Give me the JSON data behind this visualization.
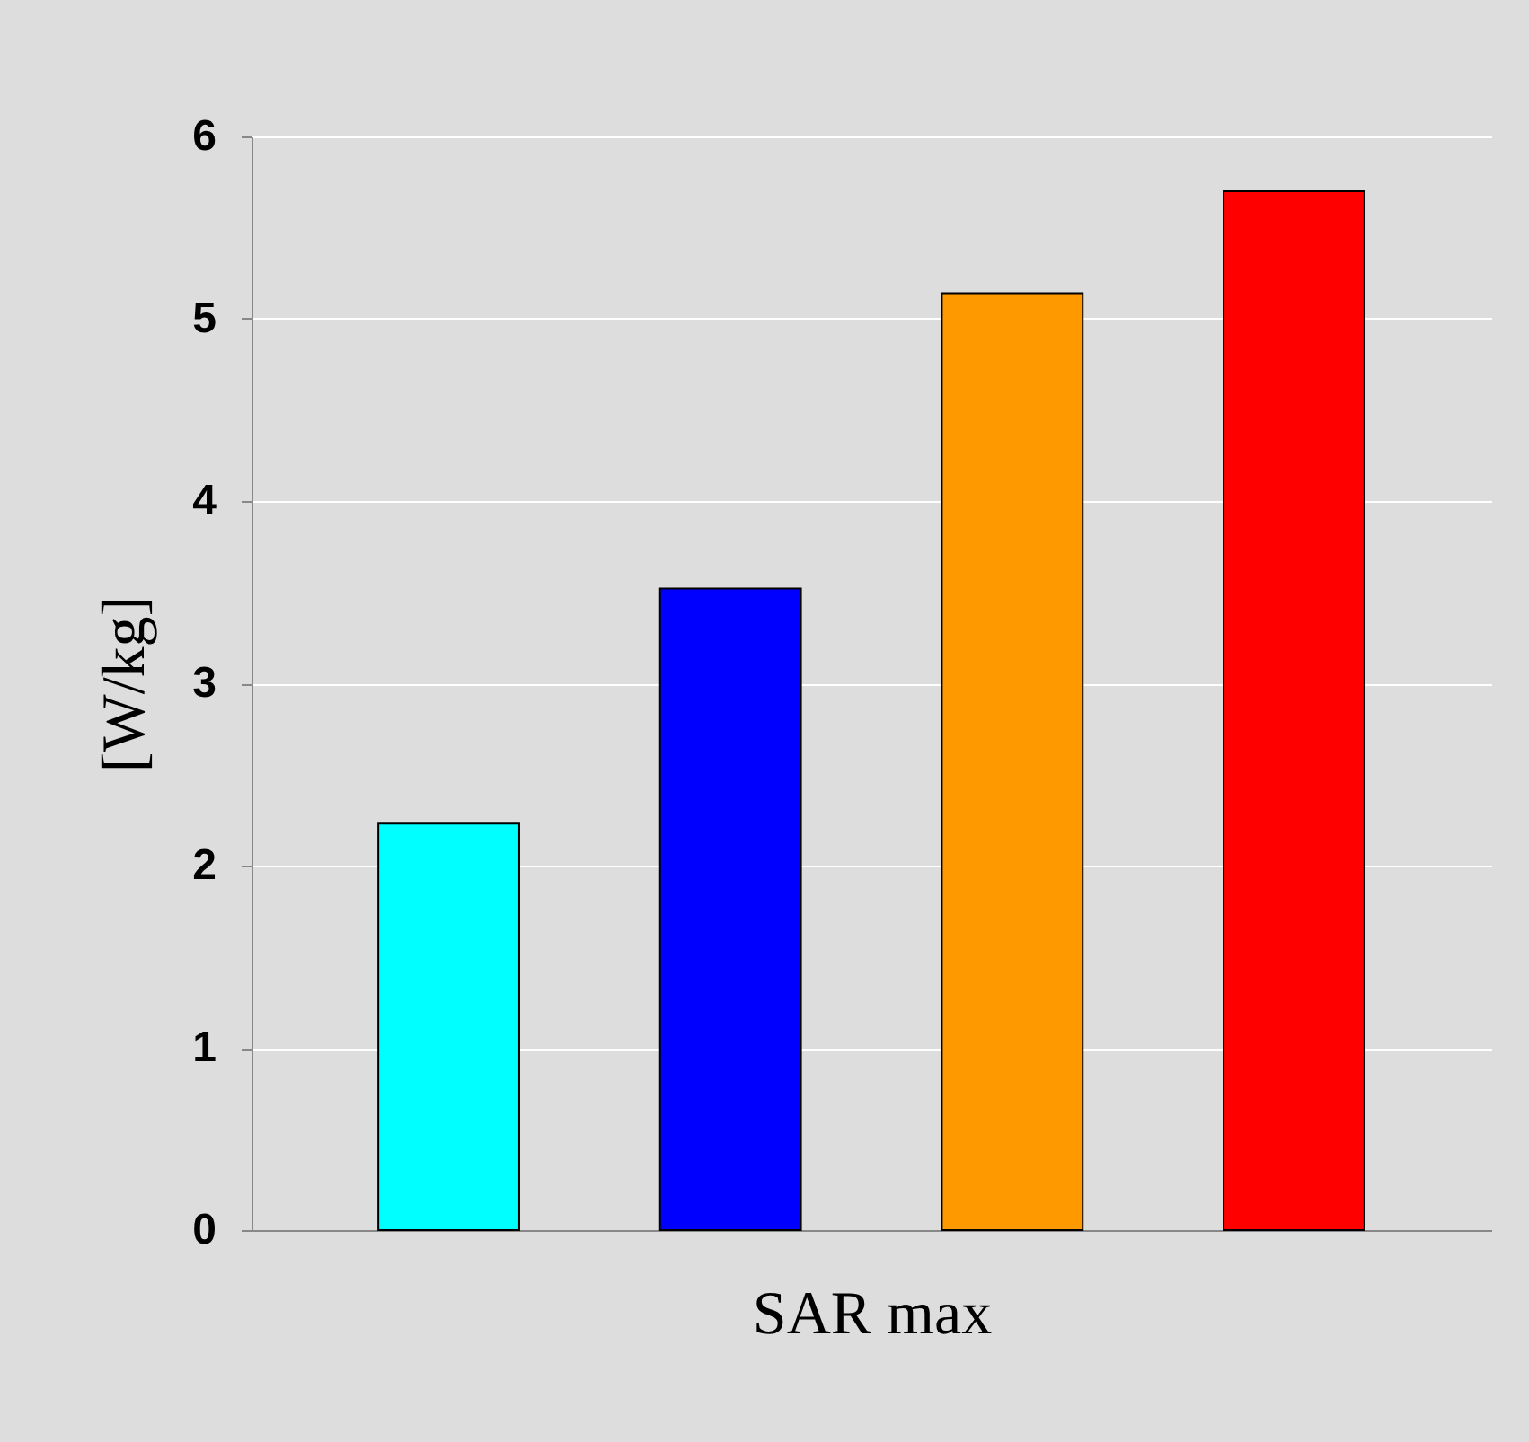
{
  "chart_data": {
    "type": "bar",
    "xlabel": "SAR max",
    "ylabel": "[W/kg]",
    "categories": [
      null,
      null,
      null,
      null
    ],
    "values": [
      2.23,
      3.52,
      5.14,
      5.7
    ],
    "colors": [
      "#00ffff",
      "#0000ff",
      "#ff9900",
      "#ff0000"
    ],
    "ylim": [
      0,
      6
    ],
    "yticks": [
      0,
      1,
      2,
      3,
      4,
      5,
      6
    ],
    "grid": "y",
    "tick_labels": "y",
    "legend": false
  }
}
